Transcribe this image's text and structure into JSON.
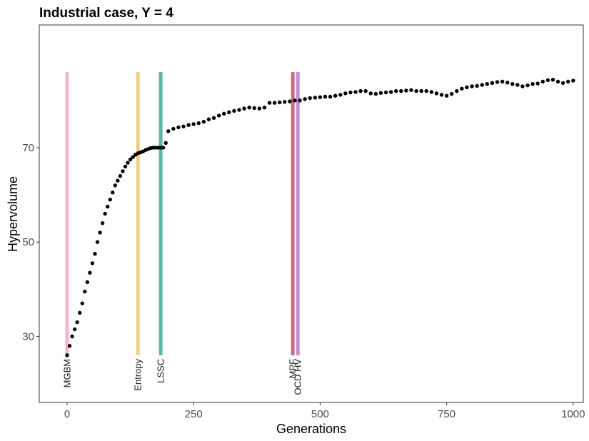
{
  "chart_data": {
    "type": "scatter",
    "title": "Industrial case, Y = 4",
    "xlabel": "Generations",
    "ylabel": "Hypervolume",
    "xlim": [
      -55,
      1020
    ],
    "ylim": [
      16,
      96
    ],
    "x_ticks": [
      0,
      250,
      500,
      750,
      1000
    ],
    "y_ticks": [
      30,
      50,
      70
    ],
    "x_tick_labels": [
      "0",
      "250",
      "500",
      "750",
      "1000"
    ],
    "y_tick_labels": [
      "30",
      "50",
      "70"
    ],
    "grid": false,
    "vlines": [
      {
        "name": "MGBM",
        "x": 0,
        "color": "#f4b6c8",
        "ymin": 26,
        "ymax": 86
      },
      {
        "name": "Entropy",
        "x": 140,
        "color": "#f0d080",
        "ymin": 26,
        "ymax": 86
      },
      {
        "name": "LSSC",
        "x": 185,
        "color": "#5fb5a8",
        "ymin": 26,
        "ymax": 86
      },
      {
        "name": "MPF",
        "x": 446,
        "color": "#c46e7e",
        "ymin": 26,
        "ymax": 86
      },
      {
        "name": "OCD HV",
        "x": 456,
        "color": "#c58ad8",
        "ymin": 26,
        "ymax": 86
      }
    ],
    "series": [
      {
        "color": "#000000",
        "x": [
          0,
          5,
          10,
          15,
          20,
          25,
          30,
          35,
          40,
          45,
          50,
          55,
          60,
          65,
          70,
          75,
          80,
          85,
          90,
          95,
          100,
          105,
          110,
          115,
          120,
          125,
          130,
          135,
          140,
          145,
          150,
          155,
          160,
          165,
          170,
          175,
          180,
          185,
          190,
          195,
          200,
          210,
          220,
          230,
          240,
          250,
          260,
          270,
          280,
          290,
          300,
          310,
          320,
          330,
          340,
          350,
          360,
          370,
          380,
          390,
          400,
          410,
          420,
          430,
          440,
          450,
          460,
          470,
          480,
          490,
          500,
          510,
          520,
          530,
          540,
          550,
          560,
          570,
          580,
          590,
          600,
          610,
          620,
          630,
          640,
          650,
          660,
          670,
          680,
          690,
          700,
          710,
          720,
          730,
          740,
          750,
          760,
          770,
          780,
          790,
          800,
          810,
          820,
          830,
          840,
          850,
          860,
          870,
          880,
          890,
          900,
          910,
          920,
          930,
          940,
          950,
          960,
          970,
          980,
          990,
          1000
        ],
        "y": [
          26.0,
          28.0,
          30.0,
          31.5,
          33.0,
          35.0,
          37.0,
          39.5,
          41.5,
          43.5,
          45.5,
          47.5,
          50.0,
          52.0,
          54.0,
          56.0,
          57.5,
          59.0,
          60.5,
          62.0,
          63.0,
          64.0,
          65.0,
          66.0,
          66.8,
          67.5,
          68.0,
          68.5,
          68.8,
          69.0,
          69.2,
          69.5,
          69.7,
          69.9,
          70.0,
          70.0,
          70.0,
          70.0,
          70.0,
          71.0,
          73.5,
          74.0,
          74.3,
          74.5,
          74.8,
          75.0,
          75.2,
          75.5,
          76.0,
          76.3,
          76.8,
          77.2,
          77.5,
          77.8,
          78.0,
          78.3,
          78.5,
          78.4,
          78.3,
          78.5,
          79.5,
          79.5,
          79.6,
          79.7,
          79.8,
          80.0,
          80.0,
          80.3,
          80.5,
          80.6,
          80.7,
          80.8,
          80.8,
          81.0,
          81.2,
          81.5,
          81.7,
          81.8,
          82.0,
          82.0,
          81.5,
          81.4,
          81.6,
          81.7,
          81.8,
          82.0,
          82.0,
          82.1,
          82.2,
          82.0,
          82.0,
          82.0,
          81.8,
          81.5,
          81.2,
          81.0,
          81.4,
          82.0,
          82.5,
          82.8,
          83.0,
          83.1,
          83.3,
          83.5,
          83.7,
          83.9,
          84.0,
          83.8,
          83.5,
          83.3,
          83.0,
          83.2,
          83.5,
          83.6,
          84.0,
          84.3,
          84.4,
          84.0,
          83.7,
          84.0,
          84.2
        ]
      }
    ]
  }
}
